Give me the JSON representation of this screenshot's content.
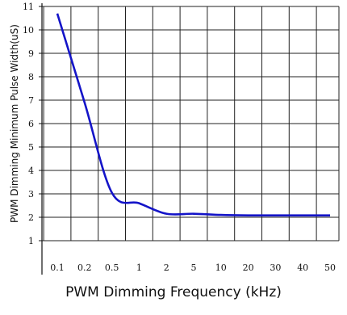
{
  "chart_data": {
    "type": "line",
    "title": "",
    "xlabel": "PWM Dimming Frequency (kHz)",
    "ylabel": "PWM Dimming Minimum Pulse Width(uS)",
    "x_categories": [
      "0.1",
      "0.2",
      "0.5",
      "1",
      "2",
      "5",
      "10",
      "20",
      "30",
      "40",
      "50"
    ],
    "y_ticks": [
      "1",
      "2",
      "3",
      "4",
      "5",
      "6",
      "7",
      "8",
      "9",
      "10",
      "11"
    ],
    "ylim": [
      1,
      11
    ],
    "grid": true,
    "series": [
      {
        "color": "#1414c8",
        "points": [
          {
            "x": "0.1",
            "y": 10.7
          },
          {
            "x": "0.2",
            "y": 6.9
          },
          {
            "x": "0.5",
            "y": 3.05
          },
          {
            "x": "1",
            "y": 2.6
          },
          {
            "x": "2",
            "y": 2.15
          },
          {
            "x": "5",
            "y": 2.15
          },
          {
            "x": "10",
            "y": 2.1
          },
          {
            "x": "20",
            "y": 2.08
          },
          {
            "x": "30",
            "y": 2.08
          },
          {
            "x": "40",
            "y": 2.08
          },
          {
            "x": "50",
            "y": 2.08
          }
        ]
      }
    ]
  }
}
